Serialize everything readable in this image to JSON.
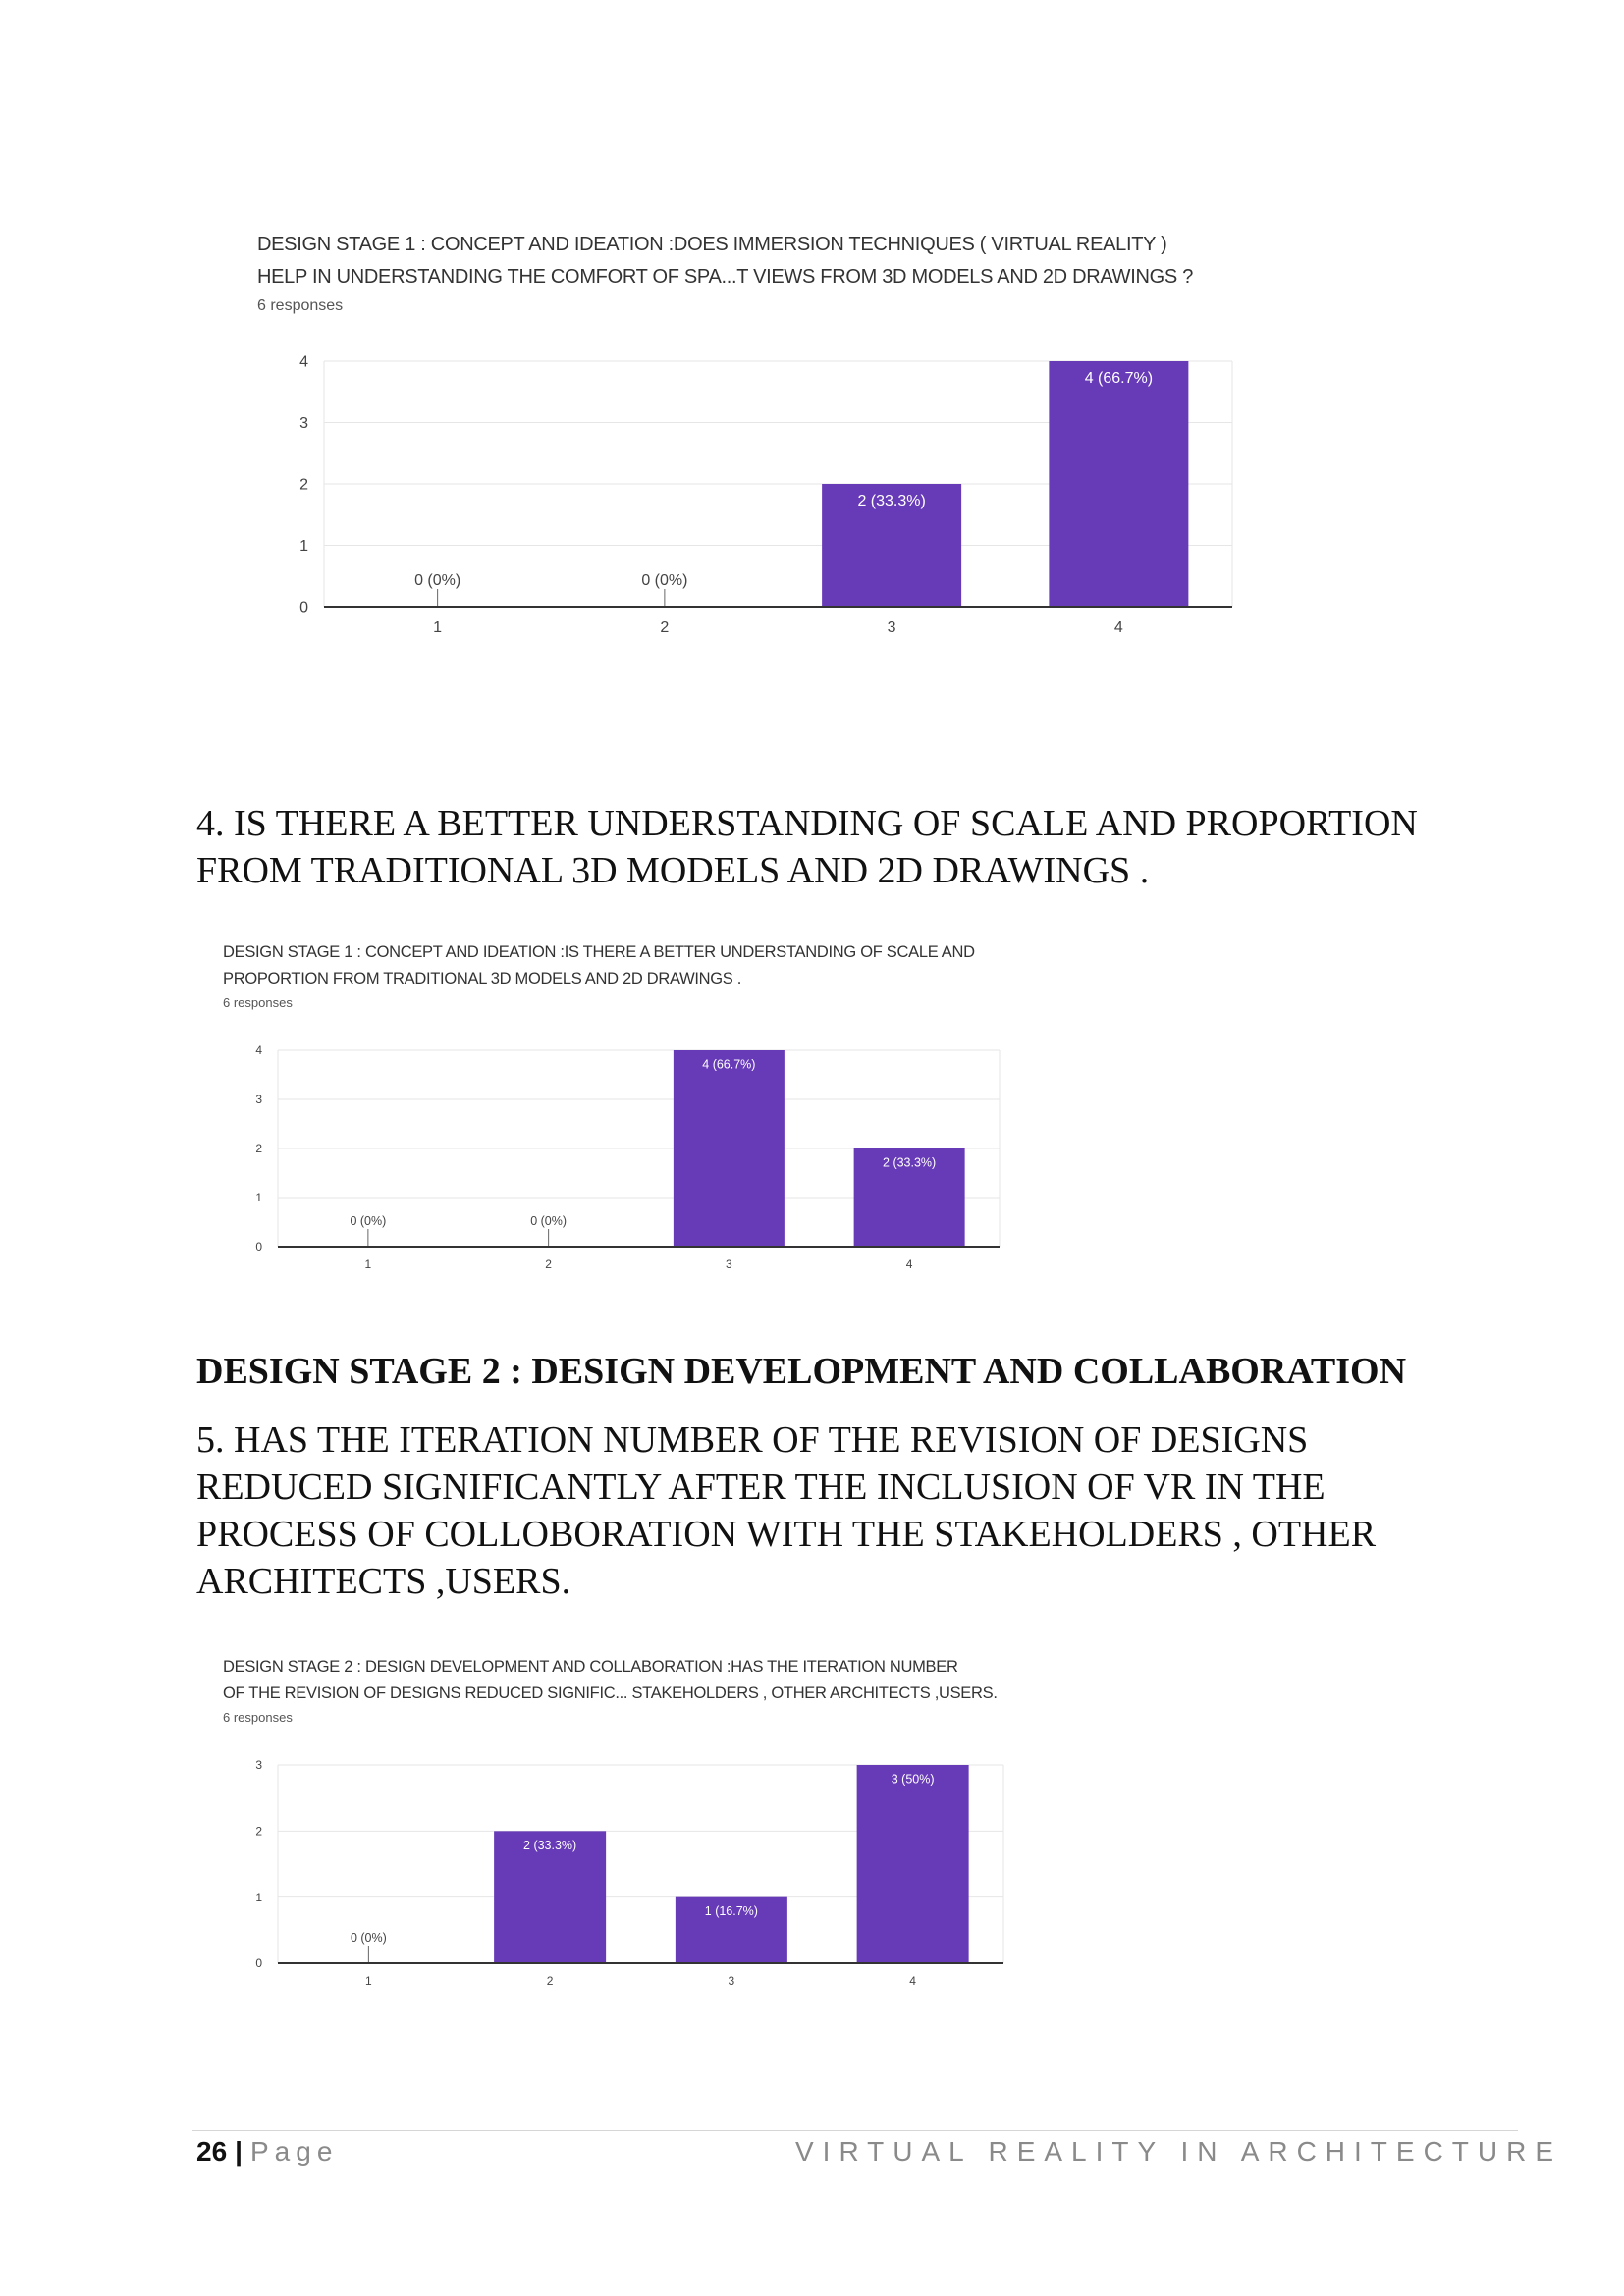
{
  "charts": [
    {
      "title_line1": "DESIGN STAGE 1 : CONCEPT AND IDEATION :DOES IMMERSION TECHNIQUES ( VIRTUAL REALITY )",
      "title_line2": "HELP IN UNDERSTANDING THE COMFORT OF SPA...T VIEWS FROM 3D MODELS AND 2D DRAWINGS ?",
      "responses": "6 responses"
    },
    {
      "title_line1": "DESIGN STAGE 1 : CONCEPT AND IDEATION :IS THERE A BETTER UNDERSTANDING OF SCALE AND",
      "title_line2": "PROPORTION FROM TRADITIONAL 3D MODELS AND 2D DRAWINGS .",
      "responses": "6 responses"
    },
    {
      "title_line1": "DESIGN STAGE 2 : DESIGN DEVELOPMENT AND COLLABORATION  :HAS THE ITERATION NUMBER",
      "title_line2": "OF THE REVISION OF DESIGNS REDUCED SIGNIFIC... STAKEHOLDERS ,  OTHER ARCHITECTS ,USERS.",
      "responses": "6 responses"
    }
  ],
  "question4": {
    "line1": "4. IS THERE A BETTER UNDERSTANDING OF SCALE AND PROPORTION",
    "line2": "FROM TRADITIONAL 3D MODELS AND 2D DRAWINGS ."
  },
  "section2_heading": "DESIGN STAGE 2 : DESIGN DEVELOPMENT AND COLLABORATION",
  "question5": {
    "line1": "5. HAS THE ITERATION NUMBER OF THE REVISION OF DESIGNS",
    "line2": "REDUCED SIGNIFICANTLY AFTER THE INCLUSION OF VR IN THE",
    "line3": "PROCESS OF COLLOBORATION WITH THE STAKEHOLDERS ,  OTHER",
    "line4": "ARCHITECTS ,USERS."
  },
  "footer": {
    "page_number": "26",
    "separator": "|",
    "page_label": "Page",
    "running_title": "VIRTUAL REALITY IN ARCHITECTURE"
  },
  "colors": {
    "bar": "#673ab7",
    "grid": "#e6e6e6",
    "axis": "#333333"
  },
  "chart_data": [
    {
      "type": "bar",
      "categories": [
        "1",
        "2",
        "3",
        "4"
      ],
      "values": [
        0,
        0,
        2,
        4
      ],
      "labels": [
        "0 (0%)",
        "0 (0%)",
        "2 (33.3%)",
        "4 (66.7%)"
      ],
      "ylim": [
        0,
        4
      ],
      "yticks": [
        0,
        1,
        2,
        3,
        4
      ],
      "grid": true
    },
    {
      "type": "bar",
      "categories": [
        "1",
        "2",
        "3",
        "4"
      ],
      "values": [
        0,
        0,
        4,
        2
      ],
      "labels": [
        "0 (0%)",
        "0 (0%)",
        "4 (66.7%)",
        "2 (33.3%)"
      ],
      "ylim": [
        0,
        4
      ],
      "yticks": [
        0,
        1,
        2,
        3,
        4
      ],
      "grid": true
    },
    {
      "type": "bar",
      "categories": [
        "1",
        "2",
        "3",
        "4"
      ],
      "values": [
        0,
        2,
        1,
        3
      ],
      "labels": [
        "0 (0%)",
        "2 (33.3%)",
        "1 (16.7%)",
        "3 (50%)"
      ],
      "ylim": [
        0,
        3
      ],
      "yticks": [
        0,
        1,
        2,
        3
      ],
      "grid": true
    }
  ]
}
